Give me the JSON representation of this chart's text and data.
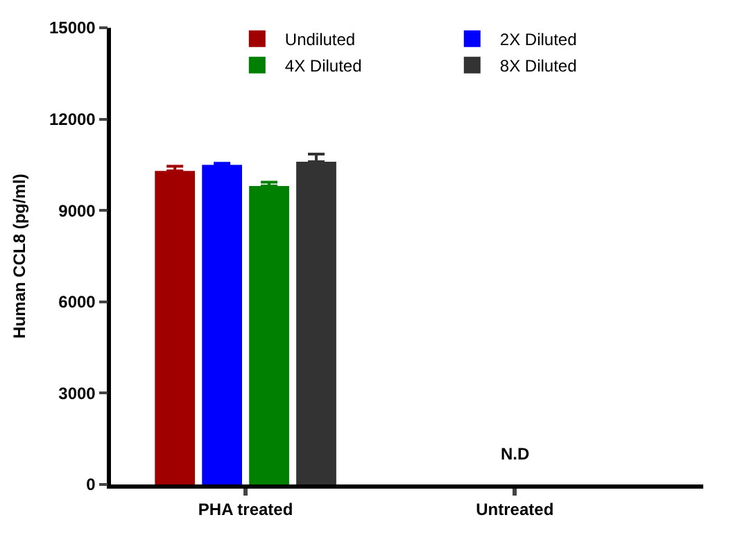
{
  "chart_data": {
    "type": "bar",
    "ylabel": "Human CCL8 (pg/ml)",
    "categories": [
      "PHA treated",
      "Untreated"
    ],
    "series": [
      {
        "name": "Undiluted",
        "color": "#a00000",
        "values": [
          10300,
          null
        ],
        "errors": [
          150,
          null
        ]
      },
      {
        "name": "2X Diluted",
        "color": "#0000ff",
        "values": [
          10500,
          null
        ],
        "errors": [
          50,
          null
        ]
      },
      {
        "name": "4X Diluted",
        "color": "#008000",
        "values": [
          9800,
          null
        ],
        "errors": [
          130,
          null
        ]
      },
      {
        "name": "8X Diluted",
        "color": "#333333",
        "values": [
          10600,
          null
        ],
        "errors": [
          250,
          null
        ]
      }
    ],
    "ylim": [
      0,
      15000
    ],
    "yticks": [
      0,
      3000,
      6000,
      9000,
      12000,
      15000
    ],
    "annotations": [
      "N.D"
    ],
    "legend": "top"
  }
}
